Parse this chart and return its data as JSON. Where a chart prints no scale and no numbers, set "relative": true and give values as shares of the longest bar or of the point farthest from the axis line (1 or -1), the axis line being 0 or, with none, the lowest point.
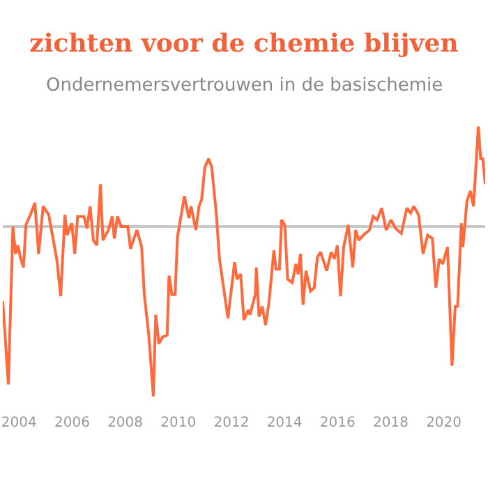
{
  "chart_data": {
    "type": "line",
    "title": "zichten voor de chemie blijven",
    "subtitle": "Ondernemersvertrouwen in de basischemie",
    "relative": true,
    "marker": "none",
    "line_style": "solid",
    "xlim": [
      2003.39,
      2021.56
    ],
    "xticks": [
      2004,
      2006,
      2008,
      2010,
      2012,
      2014,
      2016,
      2018,
      2020
    ],
    "series": [
      {
        "color": "#ff6a3d",
        "x": [
          2003.39,
          2003.6,
          2003.77,
          2003.87,
          2003.96,
          2004.05,
          2004.17,
          2004.26,
          2004.43,
          2004.6,
          2004.74,
          2004.91,
          2005.12,
          2005.43,
          2005.57,
          2005.73,
          2005.81,
          2005.99,
          2006.1,
          2006.21,
          2006.45,
          2006.56,
          2006.68,
          2006.8,
          2006.93,
          2007.07,
          2007.16,
          2007.37,
          2007.51,
          2007.59,
          2007.71,
          2007.85,
          2008.1,
          2008.2,
          2008.44,
          2008.62,
          2008.72,
          2008.89,
          2009.06,
          2009.15,
          2009.27,
          2009.41,
          2009.58,
          2009.65,
          2009.76,
          2009.88,
          2009.97,
          2010.23,
          2010.4,
          2010.48,
          2010.66,
          2010.78,
          2010.88,
          2011.0,
          2011.14,
          2011.26,
          2011.43,
          2011.55,
          2011.87,
          2012.12,
          2012.21,
          2012.35,
          2012.47,
          2012.64,
          2012.7,
          2012.9,
          2012.94,
          2013.04,
          2013.16,
          2013.29,
          2013.42,
          2013.6,
          2013.68,
          2013.81,
          2013.89,
          2014.01,
          2014.12,
          2014.29,
          2014.43,
          2014.51,
          2014.6,
          2014.7,
          2014.81,
          2014.98,
          2015.12,
          2015.24,
          2015.36,
          2015.59,
          2015.76,
          2015.88,
          2015.99,
          2016.11,
          2016.23,
          2016.4,
          2016.57,
          2016.68,
          2016.8,
          2016.97,
          2017.2,
          2017.34,
          2017.49,
          2017.66,
          2017.83,
          2018.01,
          2018.18,
          2018.4,
          2018.61,
          2018.75,
          2018.87,
          2019.05,
          2019.22,
          2019.39,
          2019.57,
          2019.7,
          2019.83,
          2019.96,
          2020.14,
          2020.31,
          2020.43,
          2020.52,
          2020.66,
          2020.72,
          2020.87,
          2021.0,
          2021.12,
          2021.3,
          2021.39,
          2021.47,
          2021.56
        ],
        "values": [
          -0.44,
          -0.93,
          0,
          -0.16,
          -0.11,
          -0.18,
          -0.24,
          0.01,
          0.07,
          0.14,
          -0.16,
          0.12,
          0.07,
          -0.2,
          -0.41,
          0.07,
          -0.05,
          0.02,
          -0.16,
          0.06,
          0.06,
          -0.01,
          0.12,
          -0.08,
          -0.11,
          0.25,
          -0.08,
          -0.02,
          0.06,
          -0.07,
          0.06,
          0,
          0,
          -0.13,
          -0.02,
          -0.12,
          -0.4,
          -0.64,
          -1,
          -0.52,
          -0.69,
          -0.65,
          -0.64,
          -0.29,
          -0.4,
          -0.4,
          -0.06,
          0.18,
          0.05,
          0.12,
          -0.02,
          0.12,
          0.16,
          0.35,
          0.4,
          0.35,
          0.08,
          -0.19,
          -0.54,
          -0.21,
          -0.31,
          -0.28,
          -0.55,
          -0.49,
          -0.52,
          -0.4,
          -0.24,
          -0.53,
          -0.47,
          -0.58,
          -0.44,
          -0.14,
          -0.25,
          -0.25,
          0.04,
          0.01,
          -0.31,
          -0.33,
          -0.22,
          -0.28,
          -0.16,
          -0.46,
          -0.26,
          -0.38,
          -0.36,
          -0.18,
          -0.15,
          -0.26,
          -0.15,
          -0.19,
          -0.11,
          -0.41,
          -0.12,
          0.01,
          -0.24,
          -0.02,
          -0.08,
          -0.05,
          -0.02,
          0.06,
          0.04,
          0.11,
          -0.02,
          0.04,
          -0.01,
          -0.04,
          0.11,
          0.08,
          0.12,
          0.07,
          -0.16,
          -0.05,
          -0.07,
          -0.36,
          -0.19,
          -0.22,
          -0.12,
          -0.82,
          -0.47,
          -0.47,
          0.02,
          -0.12,
          0.15,
          0.21,
          0.12,
          0.59,
          0.4,
          0.4,
          0.25
        ]
      }
    ]
  }
}
